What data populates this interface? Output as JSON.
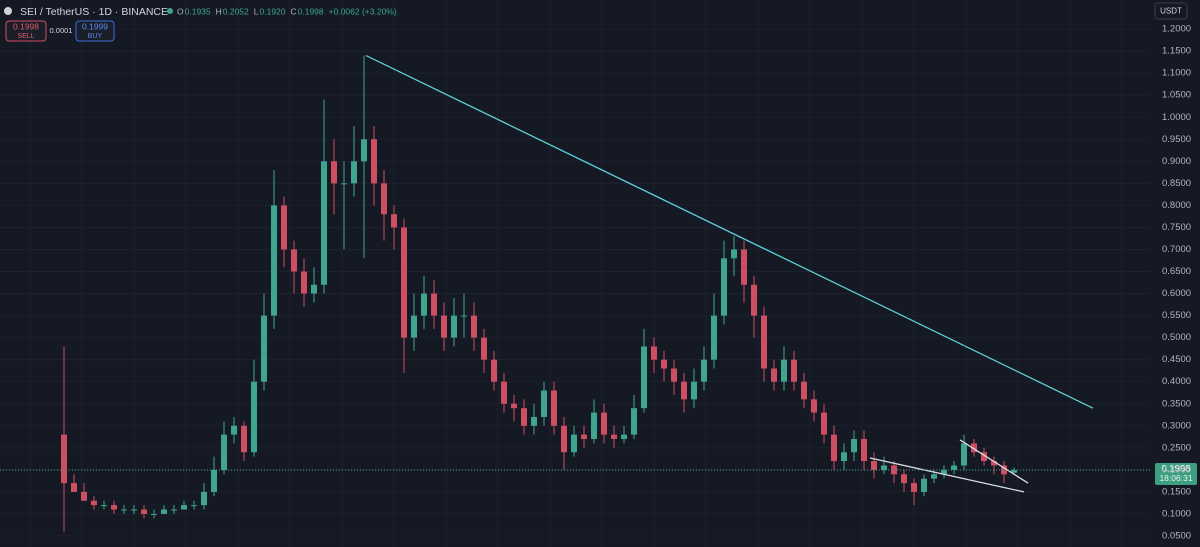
{
  "chart_data": {
    "type": "candlestick",
    "symbol": "SEI / TetherUS · 1D · BINANCE",
    "legend": [
      {
        "label": "O",
        "value": "0.1935"
      },
      {
        "label": "H",
        "value": "0.2052"
      },
      {
        "label": "L",
        "value": "0.1920"
      },
      {
        "label": "C",
        "value": "0.1998"
      }
    ],
    "change": "+0.0062 (+3.20%)",
    "sell_price": 0.1998,
    "sell_label": "SELL",
    "spread": 0.0001,
    "buy_price": 0.1999,
    "buy_label": "BUY",
    "currency": "USDT",
    "last_price": 0.1998,
    "countdown": "18:06:31",
    "up_color": "#3fa58f",
    "down_color": "#cf4f62",
    "open": [
      0.28,
      0.17,
      0.15,
      0.13,
      0.12,
      0.12,
      0.11,
      0.11,
      0.11,
      0.1,
      0.1,
      0.11,
      0.11,
      0.12,
      0.12,
      0.15,
      0.2,
      0.28,
      0.3,
      0.24,
      0.4,
      0.55,
      0.8,
      0.7,
      0.65,
      0.6,
      0.62,
      0.9,
      0.85,
      0.85,
      0.9,
      0.95,
      0.85,
      0.78,
      0.75,
      0.5,
      0.55,
      0.6,
      0.55,
      0.5,
      0.55,
      0.55,
      0.5,
      0.45,
      0.4,
      0.35,
      0.34,
      0.3,
      0.32,
      0.38,
      0.3,
      0.24,
      0.28,
      0.27,
      0.33,
      0.28,
      0.27,
      0.28,
      0.34,
      0.48,
      0.45,
      0.43,
      0.4,
      0.36,
      0.4,
      0.45,
      0.55,
      0.68,
      0.7,
      0.62,
      0.55,
      0.43,
      0.4,
      0.45,
      0.4,
      0.36,
      0.33,
      0.28,
      0.22,
      0.24,
      0.27,
      0.22,
      0.2,
      0.21,
      0.19,
      0.17,
      0.15,
      0.18,
      0.19,
      0.2,
      0.21,
      0.26,
      0.24,
      0.22,
      0.21,
      0.1935
    ],
    "high": [
      0.48,
      0.19,
      0.17,
      0.14,
      0.13,
      0.13,
      0.12,
      0.12,
      0.12,
      0.11,
      0.12,
      0.12,
      0.13,
      0.13,
      0.17,
      0.23,
      0.31,
      0.32,
      0.31,
      0.45,
      0.6,
      0.88,
      0.82,
      0.72,
      0.68,
      0.66,
      1.04,
      0.95,
      0.9,
      0.98,
      1.14,
      0.98,
      0.88,
      0.8,
      0.77,
      0.6,
      0.64,
      0.63,
      0.58,
      0.59,
      0.6,
      0.58,
      0.52,
      0.47,
      0.42,
      0.37,
      0.36,
      0.35,
      0.4,
      0.4,
      0.32,
      0.3,
      0.3,
      0.36,
      0.35,
      0.3,
      0.3,
      0.37,
      0.52,
      0.5,
      0.47,
      0.45,
      0.42,
      0.43,
      0.48,
      0.6,
      0.72,
      0.73,
      0.72,
      0.64,
      0.57,
      0.45,
      0.48,
      0.47,
      0.42,
      0.38,
      0.35,
      0.3,
      0.26,
      0.29,
      0.29,
      0.24,
      0.23,
      0.22,
      0.2,
      0.18,
      0.19,
      0.2,
      0.21,
      0.22,
      0.28,
      0.27,
      0.25,
      0.23,
      0.22,
      0.2052
    ],
    "low": [
      0.06,
      0.15,
      0.13,
      0.11,
      0.11,
      0.1,
      0.1,
      0.1,
      0.09,
      0.09,
      0.1,
      0.1,
      0.11,
      0.11,
      0.11,
      0.14,
      0.19,
      0.26,
      0.22,
      0.23,
      0.38,
      0.52,
      0.66,
      0.6,
      0.57,
      0.58,
      0.6,
      0.78,
      0.7,
      0.82,
      0.68,
      0.8,
      0.72,
      0.7,
      0.42,
      0.47,
      0.52,
      0.52,
      0.47,
      0.48,
      0.5,
      0.47,
      0.42,
      0.38,
      0.33,
      0.31,
      0.28,
      0.28,
      0.3,
      0.28,
      0.2,
      0.23,
      0.25,
      0.26,
      0.26,
      0.25,
      0.26,
      0.27,
      0.33,
      0.42,
      0.4,
      0.37,
      0.33,
      0.34,
      0.38,
      0.43,
      0.53,
      0.64,
      0.58,
      0.5,
      0.4,
      0.38,
      0.38,
      0.38,
      0.34,
      0.31,
      0.26,
      0.2,
      0.2,
      0.22,
      0.2,
      0.18,
      0.19,
      0.17,
      0.15,
      0.12,
      0.14,
      0.17,
      0.18,
      0.19,
      0.2,
      0.23,
      0.21,
      0.19,
      0.17,
      0.192
    ],
    "close": [
      0.17,
      0.15,
      0.13,
      0.12,
      0.12,
      0.11,
      0.11,
      0.11,
      0.1,
      0.1,
      0.11,
      0.11,
      0.12,
      0.12,
      0.15,
      0.2,
      0.28,
      0.3,
      0.24,
      0.4,
      0.55,
      0.8,
      0.7,
      0.65,
      0.6,
      0.62,
      0.9,
      0.85,
      0.85,
      0.9,
      0.95,
      0.85,
      0.78,
      0.75,
      0.5,
      0.55,
      0.6,
      0.55,
      0.5,
      0.55,
      0.55,
      0.5,
      0.45,
      0.4,
      0.35,
      0.34,
      0.3,
      0.32,
      0.38,
      0.3,
      0.24,
      0.28,
      0.27,
      0.33,
      0.28,
      0.27,
      0.28,
      0.34,
      0.48,
      0.45,
      0.43,
      0.4,
      0.36,
      0.4,
      0.45,
      0.55,
      0.68,
      0.7,
      0.62,
      0.55,
      0.43,
      0.4,
      0.45,
      0.4,
      0.36,
      0.33,
      0.28,
      0.22,
      0.24,
      0.27,
      0.22,
      0.2,
      0.21,
      0.19,
      0.17,
      0.15,
      0.18,
      0.19,
      0.2,
      0.21,
      0.26,
      0.24,
      0.22,
      0.21,
      0.19,
      0.1998
    ],
    "trendlines": [
      {
        "color": "#5fd0d8",
        "x": [
          30.2,
          102.9
        ],
        "y": [
          1.14,
          0.34
        ]
      },
      {
        "color": "#d8dde6",
        "x": [
          80.6,
          96
        ],
        "y": [
          0.227,
          0.15
        ]
      },
      {
        "color": "#d8dde6",
        "x": [
          89.6,
          96.4
        ],
        "y": [
          0.268,
          0.17
        ]
      }
    ],
    "xlim": [
      -6.4,
      108.6
    ],
    "ylim": [
      0.025,
      1.266
    ],
    "yticks": [
      {
        "value": 0.05,
        "label": "0.0500"
      },
      {
        "value": 0.1,
        "label": "0.1000"
      },
      {
        "value": 0.15,
        "label": "0.1500"
      },
      {
        "value": 0.2,
        "label": "0.2000"
      },
      {
        "value": 0.25,
        "label": "0.2500"
      },
      {
        "value": 0.3,
        "label": "0.3000"
      },
      {
        "value": 0.35,
        "label": "0.3500"
      },
      {
        "value": 0.4,
        "label": "0.4000"
      },
      {
        "value": 0.45,
        "label": "0.4500"
      },
      {
        "value": 0.5,
        "label": "0.5000"
      },
      {
        "value": 0.55,
        "label": "0.5500"
      },
      {
        "value": 0.6,
        "label": "0.6000"
      },
      {
        "value": 0.65,
        "label": "0.6500"
      },
      {
        "value": 0.7,
        "label": "0.7000"
      },
      {
        "value": 0.75,
        "label": "0.7500"
      },
      {
        "value": 0.8,
        "label": "0.8000"
      },
      {
        "value": 0.85,
        "label": "0.8500"
      },
      {
        "value": 0.9,
        "label": "0.9000"
      },
      {
        "value": 0.95,
        "label": "0.9500"
      },
      {
        "value": 1,
        "label": "1.0000"
      },
      {
        "value": 1.05,
        "label": "1.0500"
      },
      {
        "value": 1.1,
        "label": "1.1000"
      },
      {
        "value": 1.15,
        "label": "1.1500"
      },
      {
        "value": 1.2,
        "label": "1.2000"
      }
    ],
    "grid": true
  }
}
